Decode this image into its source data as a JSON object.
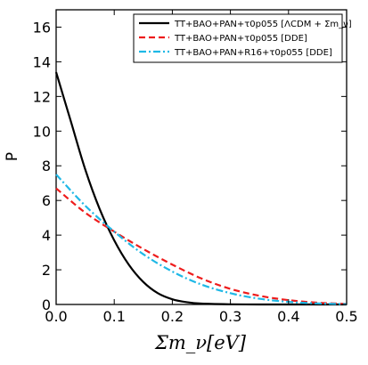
{
  "chart_data": {
    "type": "line",
    "xlabel": "Σm_ν[eV]",
    "ylabel": "P",
    "xlim": [
      0.0,
      0.5
    ],
    "ylim": [
      0,
      17
    ],
    "xticks": [
      "0.0",
      "0.1",
      "0.2",
      "0.3",
      "0.4",
      "0.5"
    ],
    "yticks": [
      "0",
      "2",
      "4",
      "6",
      "8",
      "10",
      "12",
      "14",
      "16"
    ],
    "grid": false,
    "legend_position": "top-right",
    "series": [
      {
        "name": "TT+BAO+PAN+τ0p055 [ΛCDM + Σm_ν]",
        "color": "#000000",
        "style": "solid",
        "x": [
          0.0,
          0.025,
          0.05,
          0.075,
          0.1,
          0.125,
          0.15,
          0.175,
          0.2,
          0.225,
          0.25,
          0.3,
          0.35,
          0.4,
          0.45,
          0.5
        ],
        "y": [
          13.4,
          10.6,
          7.8,
          5.5,
          3.7,
          2.3,
          1.3,
          0.65,
          0.3,
          0.13,
          0.05,
          0.01,
          0.0,
          0.0,
          0.0,
          0.0
        ]
      },
      {
        "name": "TT+BAO+PAN+τ0p055 [DDE]",
        "color": "#ee1c1c",
        "style": "dashed",
        "x": [
          0.0,
          0.05,
          0.1,
          0.15,
          0.2,
          0.25,
          0.3,
          0.35,
          0.4,
          0.45,
          0.5
        ],
        "y": [
          6.7,
          5.3,
          4.2,
          3.2,
          2.3,
          1.5,
          0.9,
          0.5,
          0.25,
          0.1,
          0.03
        ]
      },
      {
        "name": "TT+BAO+PAN+R16+τ0p055 [DDE]",
        "color": "#1fb8e6",
        "style": "dashdot",
        "x": [
          0.0,
          0.05,
          0.1,
          0.15,
          0.2,
          0.25,
          0.3,
          0.35,
          0.4,
          0.45,
          0.5
        ],
        "y": [
          7.5,
          5.7,
          4.2,
          2.9,
          1.9,
          1.15,
          0.65,
          0.33,
          0.15,
          0.06,
          0.02
        ]
      }
    ]
  }
}
